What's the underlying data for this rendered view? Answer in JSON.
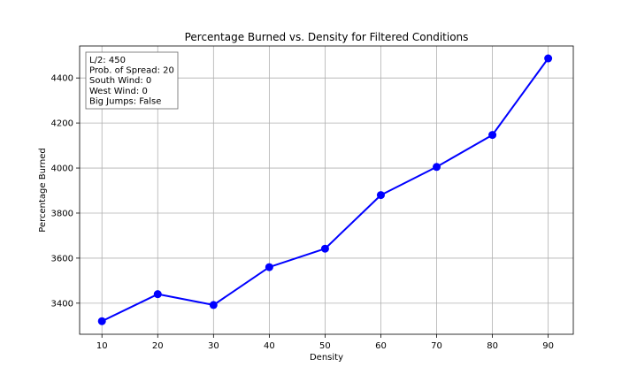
{
  "chart_data": {
    "type": "line",
    "title": "Percentage Burned vs. Density for Filtered Conditions",
    "xlabel": "Density",
    "ylabel": "Percentage Burned",
    "x": [
      10,
      20,
      30,
      40,
      50,
      60,
      70,
      80,
      90
    ],
    "series": [
      {
        "values": [
          3320,
          3440,
          3392,
          3560,
          3642,
          3880,
          4005,
          4147,
          4487
        ],
        "color": "#0000ff",
        "marker": "circle"
      }
    ],
    "xlim": [
      6,
      94.5
    ],
    "ylim": [
      3262,
      4542
    ],
    "xticks": [
      10,
      20,
      30,
      40,
      50,
      60,
      70,
      80,
      90
    ],
    "yticks": [
      3400,
      3600,
      3800,
      4000,
      4200,
      4400
    ],
    "grid": true,
    "annotation": {
      "placement": "top-left",
      "lines": [
        "L/2: 450",
        "Prob. of Spread: 20",
        "South Wind: 0",
        "West Wind: 0",
        "Big Jumps: False"
      ]
    }
  }
}
